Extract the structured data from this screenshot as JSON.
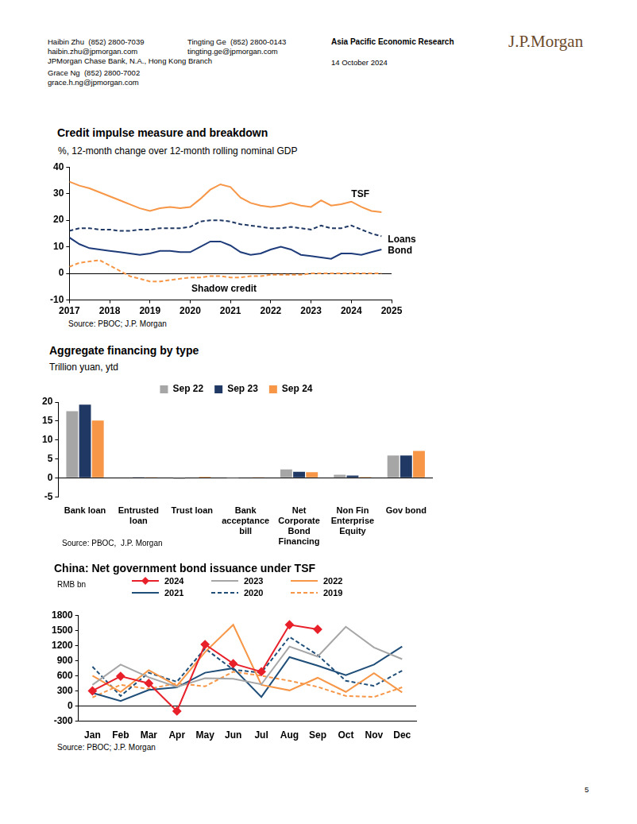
{
  "header": {
    "authors": [
      {
        "name": "Haibin Zhu",
        "phone": "(852) 2800-7039",
        "email": "haibin.zhu@jpmorgan.com",
        "affiliation": "JPMorgan Chase Bank, N.A., Hong Kong Branch"
      },
      {
        "name": "Tingting Ge",
        "phone": "(852) 2800-0143",
        "email": "tingting.ge@jpmorgan.com"
      },
      {
        "name": "Grace Ng",
        "phone": "(852) 2800-7002",
        "email": "grace.h.ng@jpmorgan.com"
      }
    ],
    "publication": "Asia Pacific Economic Research",
    "date": "14 October 2024",
    "logo": "J.P.Morgan"
  },
  "chart_data": [
    {
      "type": "line",
      "title": "Credit impulse measure and breakdown",
      "subtitle": "%, 12-month change over 12-month rolling nominal GDP",
      "source": "Source: PBOC; J.P. Morgan",
      "x": [
        2017,
        2017.25,
        2017.5,
        2017.75,
        2018,
        2018.25,
        2018.5,
        2018.75,
        2019,
        2019.25,
        2019.5,
        2019.75,
        2020,
        2020.25,
        2020.5,
        2020.75,
        2021,
        2021.25,
        2021.5,
        2021.75,
        2022,
        2022.25,
        2022.5,
        2022.75,
        2023,
        2023.25,
        2023.5,
        2023.75,
        2024,
        2024.25,
        2024.5,
        2024.75
      ],
      "xlim": [
        2017,
        2025
      ],
      "xticks": [
        2017,
        2018,
        2019,
        2020,
        2021,
        2022,
        2023,
        2024,
        2025
      ],
      "ylim": [
        -10,
        40
      ],
      "yticks": [
        -10,
        0,
        10,
        20,
        30,
        40
      ],
      "grid": false,
      "series": [
        {
          "name": "TSF",
          "color": "#f79646",
          "line_style": "solid",
          "values": [
            34.5,
            33,
            32,
            30.5,
            29,
            27.5,
            26,
            24.5,
            23.5,
            24.5,
            25,
            24.5,
            25,
            28,
            31.5,
            33.5,
            32.5,
            28.5,
            26.5,
            25.5,
            25,
            25.5,
            26.5,
            25.5,
            25,
            27.5,
            25.5,
            26,
            27,
            25,
            23.5,
            23
          ]
        },
        {
          "name": "Loans",
          "color": "#1f3864",
          "line_style": "dashed",
          "values": [
            16,
            17,
            17,
            16.5,
            16.5,
            16,
            16,
            16.5,
            16.5,
            17,
            17,
            17,
            17.5,
            19.5,
            20,
            20,
            19.5,
            18.5,
            18,
            17.5,
            17,
            17,
            17.5,
            17,
            16.5,
            18,
            17,
            17,
            18,
            16.5,
            15,
            14
          ]
        },
        {
          "name": "Bond",
          "color": "#1f3c7a",
          "line_style": "solid",
          "values": [
            13.5,
            11,
            9.5,
            9,
            8.5,
            8,
            7.5,
            7,
            7.5,
            8.5,
            8.5,
            8,
            8,
            10,
            12,
            12,
            10.5,
            8,
            7,
            7.5,
            9,
            10,
            9,
            7,
            6.5,
            6,
            5.5,
            7.5,
            7.5,
            7,
            8,
            9
          ]
        },
        {
          "name": "Shadow credit",
          "color": "#f79646",
          "line_style": "dashed",
          "values": [
            2.5,
            4,
            4.5,
            5,
            3,
            1,
            -1,
            -2,
            -3,
            -3,
            -2.5,
            -2,
            -1.5,
            -1.5,
            -1,
            -1,
            -1.5,
            -1.5,
            -1,
            -1,
            -0.5,
            -0.5,
            -0.5,
            -0.5,
            0,
            0,
            0,
            0,
            0,
            0,
            0,
            0
          ]
        }
      ]
    },
    {
      "type": "bar",
      "title": "Aggregate financing by type",
      "subtitle": "Trillion yuan, ytd",
      "source": "Source: PBOC,  J.P. Morgan",
      "categories": [
        "Bank loan",
        "Entrusted loan",
        "Trust loan",
        "Bank acceptance bill",
        "Net Corporate Bond Financing",
        "Non Fin Enterprise Equity",
        "Gov bond"
      ],
      "ylim": [
        -5,
        20
      ],
      "yticks": [
        -5,
        0,
        5,
        10,
        15,
        20
      ],
      "grid": false,
      "legend": "top",
      "series": [
        {
          "name": "Sep 22",
          "color": "#a6a6a6",
          "values": [
            17.6,
            0.15,
            -0.3,
            -0.05,
            2.2,
            0.8,
            5.9
          ]
        },
        {
          "name": "Sep 23",
          "color": "#1f3864",
          "values": [
            19.3,
            0.05,
            0,
            0.15,
            1.6,
            0.6,
            5.9
          ]
        },
        {
          "name": "Sep 24",
          "color": "#f79646",
          "values": [
            15.1,
            0.05,
            0.3,
            0.05,
            1.5,
            0.25,
            7.1
          ]
        }
      ]
    },
    {
      "type": "line",
      "title": "China: Net government bond issuance under TSF",
      "ylabel": "RMB bn",
      "source": "Source: PBOC; J.P. Morgan",
      "categories": [
        "Jan",
        "Feb",
        "Mar",
        "Apr",
        "May",
        "Jun",
        "Jul",
        "Aug",
        "Sep",
        "Oct",
        "Nov",
        "Dec"
      ],
      "ylim": [
        -300,
        1800
      ],
      "yticks": [
        -300,
        0,
        300,
        600,
        900,
        1200,
        1500,
        1800
      ],
      "grid": false,
      "legend": "top",
      "series": [
        {
          "name": "2024",
          "color": "#e8202a",
          "line_style": "solid",
          "marker": "diamond",
          "values": [
            300,
            590,
            450,
            -100,
            1220,
            840,
            680,
            1610,
            1520,
            null,
            null,
            null
          ]
        },
        {
          "name": "2023",
          "color": "#a6a6a6",
          "line_style": "solid",
          "values": [
            420,
            820,
            570,
            380,
            550,
            540,
            430,
            1180,
            980,
            1570,
            1160,
            930
          ]
        },
        {
          "name": "2022",
          "color": "#f79646",
          "line_style": "solid",
          "values": [
            600,
            280,
            710,
            400,
            1070,
            1610,
            420,
            310,
            560,
            280,
            650,
            270
          ]
        },
        {
          "name": "2021",
          "color": "#1f4e79",
          "line_style": "solid",
          "values": [
            260,
            100,
            320,
            370,
            660,
            750,
            180,
            970,
            800,
            610,
            820,
            1180
          ]
        },
        {
          "name": "2020",
          "color": "#1f4e79",
          "line_style": "dashed",
          "values": [
            780,
            200,
            660,
            480,
            1140,
            720,
            660,
            1370,
            1010,
            500,
            400,
            700
          ]
        },
        {
          "name": "2019",
          "color": "#f79646",
          "line_style": "dashed",
          "values": [
            170,
            420,
            340,
            450,
            390,
            680,
            600,
            500,
            380,
            200,
            180,
            370
          ]
        }
      ]
    }
  ],
  "page_number": "5"
}
